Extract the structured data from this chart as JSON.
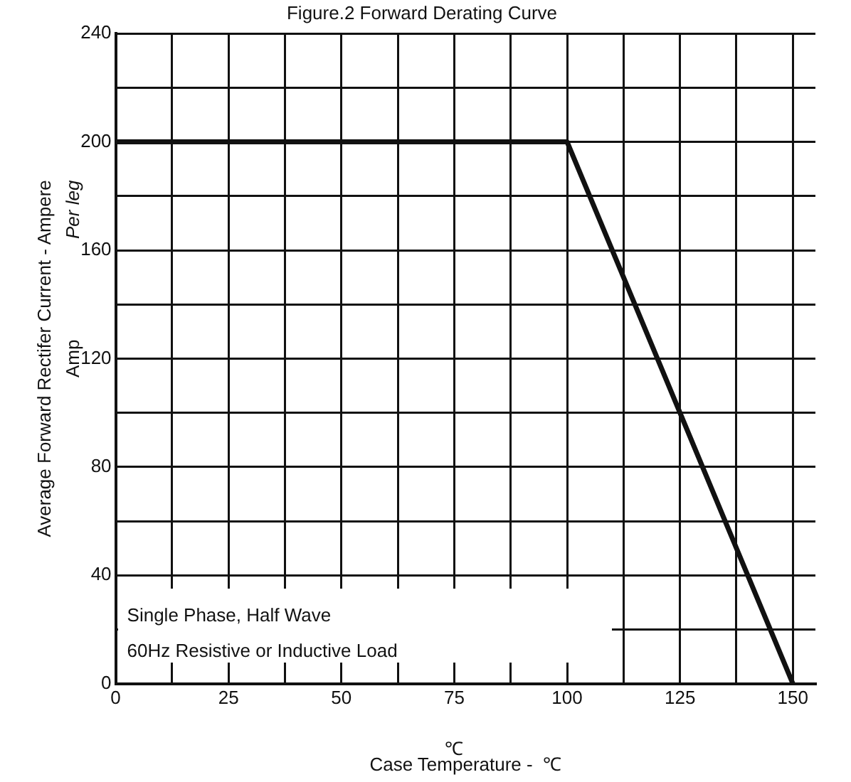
{
  "chart_data": {
    "type": "line",
    "title": "Figure.2 Forward Derating Curve",
    "xlabel": "Case Temperature -  ℃",
    "ylabel": "Average Forward Rectifer Current - Ampere",
    "annotations": [
      "Amp",
      "Per leg",
      "Single Phase, Half Wave",
      "60Hz Resistive or Inductive Load",
      "℃"
    ],
    "x": [
      0,
      100,
      150
    ],
    "series": [
      {
        "color": "#111111",
        "values": [
          200,
          200,
          0
        ]
      }
    ],
    "xlim": [
      0,
      155
    ],
    "xticks": [
      0,
      {
        "value": 12.5,
        "label": null
      },
      25,
      {
        "value": 37.5,
        "label": null
      },
      50,
      {
        "value": 62.5,
        "label": null
      },
      75,
      {
        "value": 87.5,
        "label": null
      },
      100,
      {
        "value": 112.5,
        "label": null
      },
      125,
      {
        "value": 137.5,
        "label": null
      },
      150
    ],
    "ylim": [
      0,
      240
    ],
    "yticks": [
      0,
      {
        "value": 20,
        "label": null
      },
      40,
      {
        "value": 60,
        "label": null
      },
      80,
      {
        "value": 100,
        "label": null
      },
      120,
      {
        "value": 140,
        "label": null
      },
      160,
      {
        "value": 180,
        "label": null
      },
      200,
      {
        "value": 220,
        "label": null
      },
      240
    ],
    "grid": true,
    "legend": false,
    "marker": "none",
    "line_style": "solid"
  }
}
